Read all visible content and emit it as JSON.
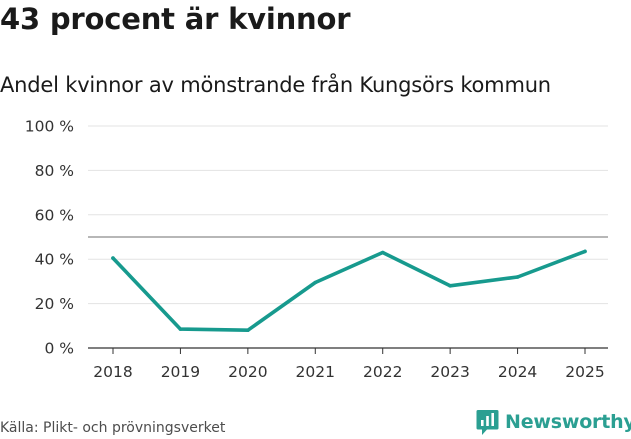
{
  "chart_data": {
    "type": "line",
    "title": "43 procent är kvinnor",
    "subtitle": "Andel kvinnor av mönstrande från Kungsörs kommun",
    "categories": [
      "2018",
      "2019",
      "2020",
      "2021",
      "2022",
      "2023",
      "2024",
      "2025"
    ],
    "series": [
      {
        "name": "Andel kvinnor",
        "values": [
          40.5,
          8.5,
          8,
          29.5,
          43,
          28,
          32,
          43.5
        ]
      }
    ],
    "reference_line": 50,
    "ylim": [
      0,
      100
    ],
    "yticks": [
      0,
      20,
      40,
      60,
      80,
      100
    ],
    "ytick_labels": [
      "0 %",
      "20 %",
      "40 %",
      "60 %",
      "80 %",
      "100 %"
    ],
    "xlabel": "",
    "ylabel": "",
    "grid": true,
    "colors": {
      "line": "#179a8e",
      "grid": "#e3e3e3",
      "reference": "#8c8c8c",
      "axis": "#333333"
    }
  },
  "footer": {
    "source": "Källa: Plikt- och prövningsverket",
    "brand": "Newsworthy"
  }
}
